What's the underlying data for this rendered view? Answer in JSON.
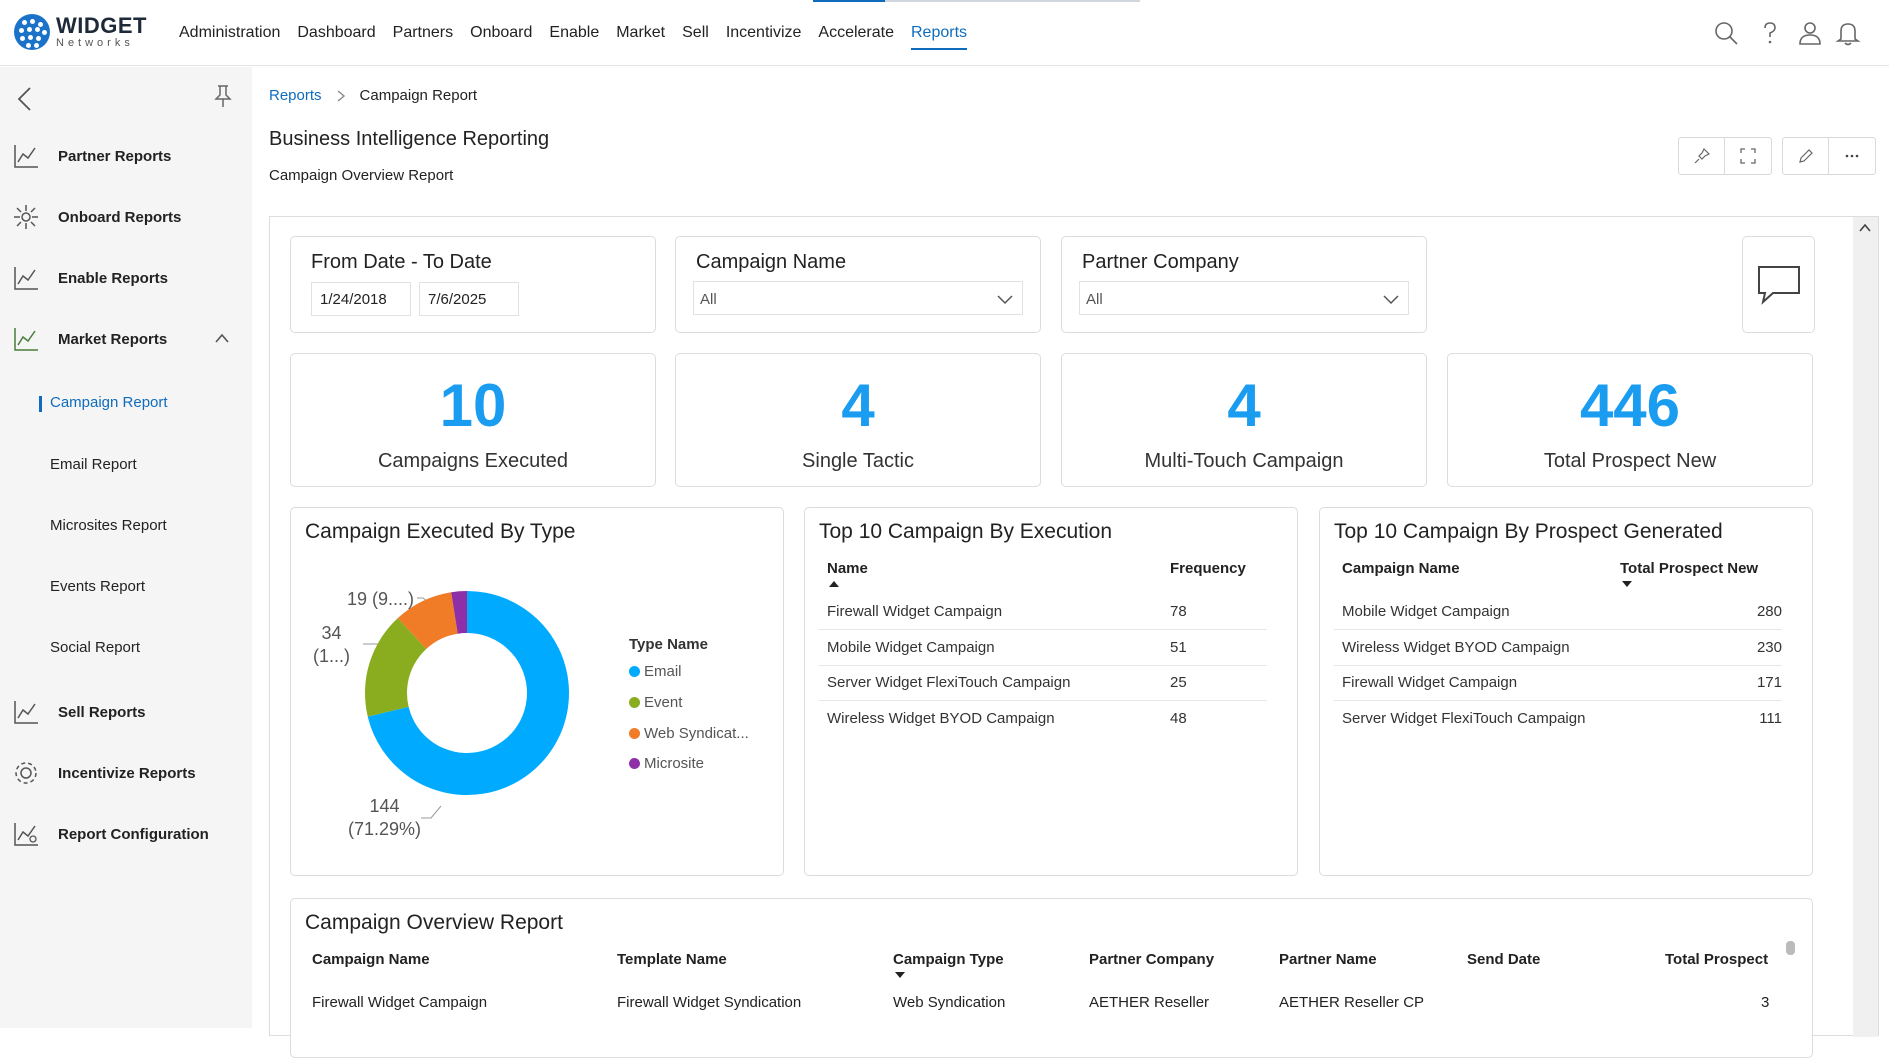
{
  "brand": {
    "name": "WIDGET",
    "sub": "Networks",
    "accent": "#0f6cbd"
  },
  "nav": [
    "Administration",
    "Dashboard",
    "Partners",
    "Onboard",
    "Enable",
    "Market",
    "Sell",
    "Incentivize",
    "Accelerate",
    "Reports"
  ],
  "nav_active": "Reports",
  "header_icons": [
    "search-icon",
    "help-icon",
    "user-icon",
    "bell-icon"
  ],
  "sidebar": {
    "items": [
      {
        "label": "Partner Reports",
        "icon": "chart-line-icon"
      },
      {
        "label": "Onboard Reports",
        "icon": "onboard-icon"
      },
      {
        "label": "Enable Reports",
        "icon": "chart-line-icon"
      },
      {
        "label": "Market Reports",
        "icon": "market-chart-icon"
      },
      {
        "label": "Sell Reports",
        "icon": "chart-line-icon"
      },
      {
        "label": "Incentivize Reports",
        "icon": "gear-icon"
      },
      {
        "label": "Report Configuration",
        "icon": "config-chart-icon"
      }
    ],
    "subitems": [
      "Campaign Report",
      "Email Report",
      "Microsites Report",
      "Events Report",
      "Social Report"
    ],
    "active_sub": "Campaign Report"
  },
  "breadcrumb": {
    "root": "Reports",
    "current": "Campaign Report"
  },
  "page": {
    "title": "Business Intelligence Reporting",
    "subtitle": "Campaign Overview Report"
  },
  "filters": {
    "date": {
      "label": "From Date - To Date",
      "from": "1/24/2018",
      "to": "7/6/2025"
    },
    "campaign": {
      "label": "Campaign Name",
      "value": "All"
    },
    "partner": {
      "label": "Partner Company",
      "value": "All"
    }
  },
  "kpis": [
    {
      "value": "10",
      "label": "Campaigns Executed"
    },
    {
      "value": "4",
      "label": "Single Tactic"
    },
    {
      "value": "4",
      "label": "Multi-Touch Campaign"
    },
    {
      "value": "446",
      "label": "Total Prospect New"
    }
  ],
  "donut": {
    "title": "Campaign Executed By Type",
    "legend_title": "Type Name",
    "legend": [
      "Email",
      "Event",
      "Web Syndicat...",
      "Microsite"
    ],
    "labels": {
      "email": "144",
      "email_pct": "(71.29%)",
      "event": "34",
      "event_pct": "(1...)",
      "web": "19 (9....)"
    }
  },
  "chart_data": {
    "type": "pie",
    "title": "Campaign Executed By Type",
    "categories": [
      "Email",
      "Event",
      "Web Syndication",
      "Microsite"
    ],
    "values": [
      144,
      34,
      19,
      5
    ],
    "colors": [
      "#00aaff",
      "#8aad1f",
      "#f07c28",
      "#8e2fa8"
    ]
  },
  "top_exec": {
    "title": "Top 10 Campaign By Execution",
    "headers": [
      "Name",
      "Frequency"
    ],
    "rows": [
      [
        "Firewall Widget Campaign",
        "78"
      ],
      [
        "Mobile Widget Campaign",
        "51"
      ],
      [
        "Server Widget FlexiTouch Campaign",
        "25"
      ],
      [
        "Wireless Widget BYOD Campaign",
        "48"
      ]
    ]
  },
  "top_prospect": {
    "title": "Top 10 Campaign By Prospect Generated",
    "headers": [
      "Campaign Name",
      "Total Prospect New"
    ],
    "rows": [
      [
        "Mobile Widget Campaign",
        "280"
      ],
      [
        "Wireless Widget BYOD Campaign",
        "230"
      ],
      [
        "Firewall Widget Campaign",
        "171"
      ],
      [
        "Server Widget FlexiTouch Campaign",
        "111"
      ]
    ]
  },
  "overview": {
    "title": "Campaign Overview Report",
    "headers": [
      "Campaign Name",
      "Template Name",
      "Campaign Type",
      "Partner Company",
      "Partner Name",
      "Send Date",
      "Total Prospect"
    ],
    "row": [
      "Firewall Widget Campaign",
      "Firewall Widget Syndication",
      "Web Syndication",
      "AETHER Reseller",
      "AETHER Reseller CP",
      "",
      "3"
    ]
  }
}
